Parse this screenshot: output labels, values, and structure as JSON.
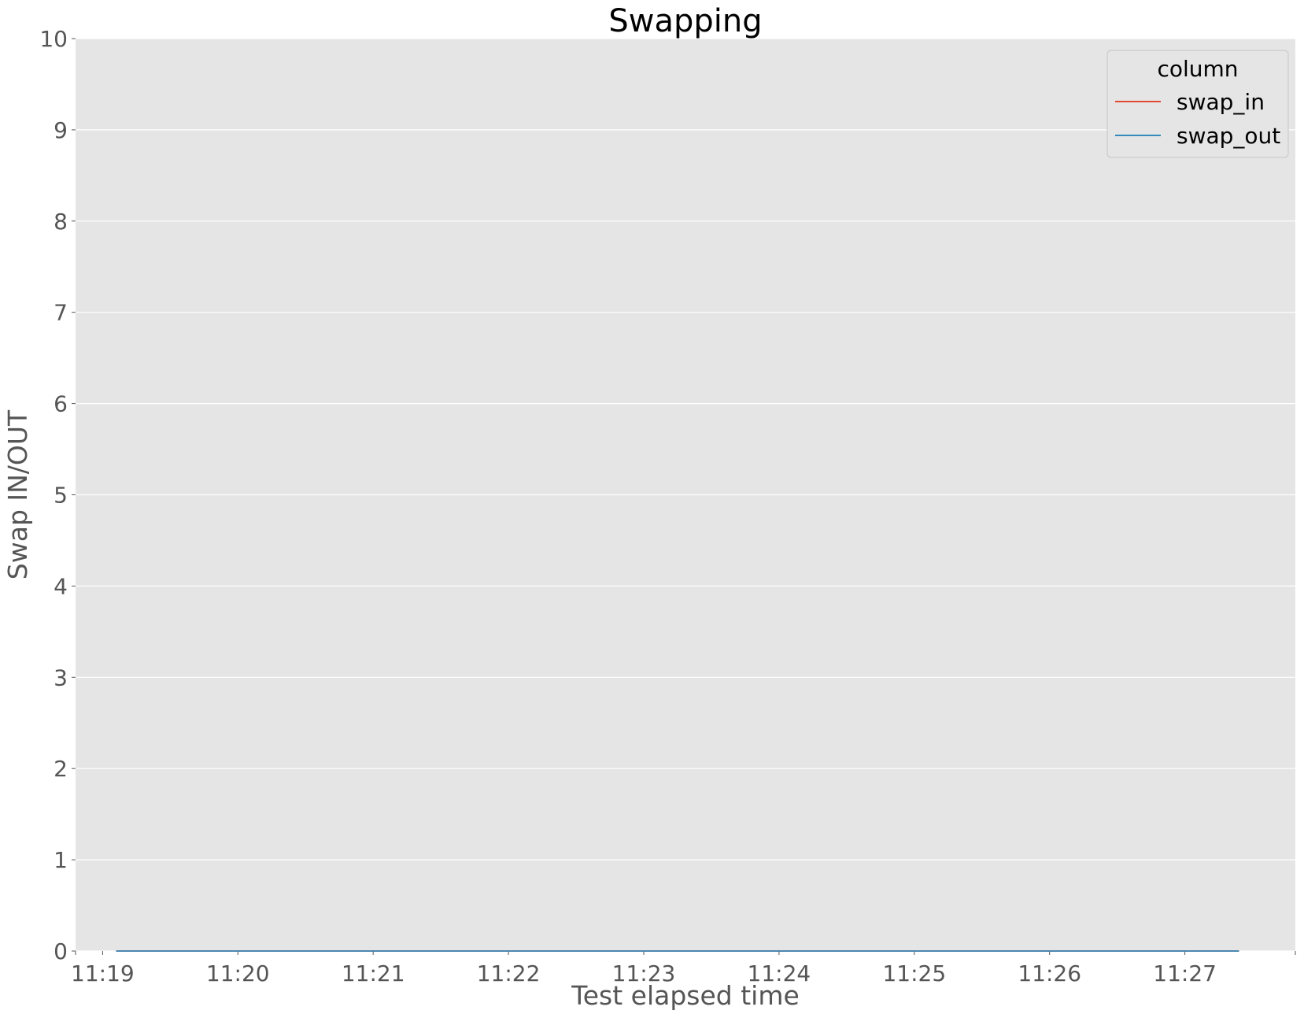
{
  "chart_data": {
    "type": "line",
    "title": "Swapping",
    "xlabel": "Test elapsed time",
    "ylabel": "Swap IN/OUT",
    "x_tick_labels": [
      "11:19",
      "11:20",
      "11:21",
      "11:22",
      "11:23",
      "11:24",
      "11:25",
      "11:26",
      "11:27"
    ],
    "y_tick_labels": [
      "0",
      "1",
      "2",
      "3",
      "4",
      "5",
      "6",
      "7",
      "8",
      "9",
      "10"
    ],
    "x_range": [
      "11:18:48",
      "11:27:49"
    ],
    "ylim": [
      0,
      10
    ],
    "grid": true,
    "legend": {
      "title": "column",
      "placement": "top-right",
      "entries": [
        "swap_in",
        "swap_out"
      ]
    },
    "series": [
      {
        "name": "swap_in",
        "color": "#e24a33",
        "x": [
          "11:19:06",
          "11:27:24"
        ],
        "y": [
          0,
          0
        ]
      },
      {
        "name": "swap_out",
        "color": "#348abd",
        "x": [
          "11:19:06",
          "11:27:24"
        ],
        "y": [
          0,
          0
        ]
      }
    ],
    "colors": {
      "plot_background": "#e5e5e5",
      "grid": "#ffffff",
      "tick_text": "#555555"
    }
  }
}
